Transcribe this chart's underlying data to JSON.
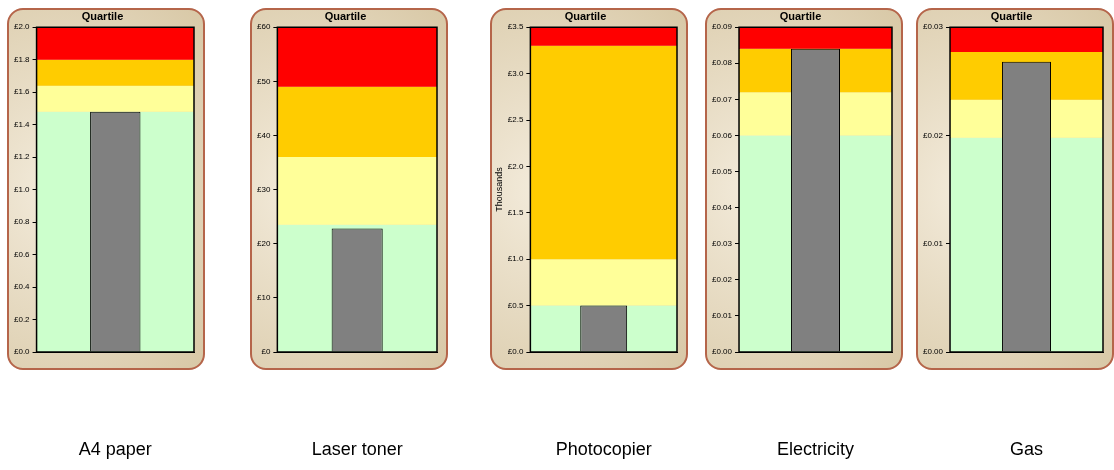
{
  "chart_data": [
    {
      "type": "bar",
      "title": "Quartile",
      "categories": [
        "A4 paper"
      ],
      "values": [
        1.48
      ],
      "color": "#808080",
      "ylim": [
        0,
        2
      ],
      "yticks": [
        {
          "value": 0,
          "label": "£0.0"
        },
        {
          "value": 0.2,
          "label": "£0.2"
        },
        {
          "value": 0.4,
          "label": "£0.4"
        },
        {
          "value": 0.6,
          "label": "£0.6"
        },
        {
          "value": 0.8,
          "label": "£0.8"
        },
        {
          "value": 1,
          "label": "£1.0"
        },
        {
          "value": 1.2,
          "label": "£1.2"
        },
        {
          "value": 1.4,
          "label": "£1.4"
        },
        {
          "value": 1.6,
          "label": "£1.6"
        },
        {
          "value": 1.8,
          "label": "£1.8"
        },
        {
          "value": 2,
          "label": "£2.0"
        }
      ],
      "bands": [
        {
          "axis": "y",
          "from": 0,
          "to": 1.48,
          "color": "#ccffcc"
        },
        {
          "axis": "y",
          "from": 1.48,
          "to": 1.64,
          "color": "#ffff99"
        },
        {
          "axis": "y",
          "from": 1.64,
          "to": 1.8,
          "color": "#ffcc00"
        },
        {
          "axis": "y",
          "from": 1.8,
          "to": 2,
          "color": "#ff0000"
        }
      ],
      "legend": false,
      "grid": false
    },
    {
      "type": "bar",
      "title": "Quartile",
      "categories": [
        "Laser toner"
      ],
      "values": [
        22.8
      ],
      "color": "#808080",
      "ylim": [
        0,
        60
      ],
      "yticks": [
        {
          "value": 0,
          "label": "£0"
        },
        {
          "value": 10,
          "label": "£10"
        },
        {
          "value": 20,
          "label": "£20"
        },
        {
          "value": 30,
          "label": "£30"
        },
        {
          "value": 40,
          "label": "£40"
        },
        {
          "value": 50,
          "label": "£50"
        },
        {
          "value": 60,
          "label": "£60"
        }
      ],
      "bands": [
        {
          "axis": "y",
          "from": 0,
          "to": 23.5,
          "color": "#ccffcc"
        },
        {
          "axis": "y",
          "from": 23.5,
          "to": 36,
          "color": "#ffff99"
        },
        {
          "axis": "y",
          "from": 36,
          "to": 49,
          "color": "#ffcc00"
        },
        {
          "axis": "y",
          "from": 49,
          "to": 60,
          "color": "#ff0000"
        }
      ],
      "legend": false,
      "grid": false
    },
    {
      "type": "bar",
      "title": "Quartile",
      "ylabel": "Thousands",
      "categories": [
        "Photocopier"
      ],
      "values": [
        0.5
      ],
      "color": "#808080",
      "ylim": [
        0,
        3.5
      ],
      "yticks": [
        {
          "value": 0,
          "label": "£0.0"
        },
        {
          "value": 0.5,
          "label": "£0.5"
        },
        {
          "value": 1,
          "label": "£1.0"
        },
        {
          "value": 1.5,
          "label": "£1.5"
        },
        {
          "value": 2,
          "label": "£2.0"
        },
        {
          "value": 2.5,
          "label": "£2.5"
        },
        {
          "value": 3,
          "label": "£3.0"
        },
        {
          "value": 3.5,
          "label": "£3.5"
        }
      ],
      "bands": [
        {
          "axis": "y",
          "from": 0,
          "to": 0.5,
          "color": "#ccffcc"
        },
        {
          "axis": "y",
          "from": 0.5,
          "to": 1,
          "color": "#ffff99"
        },
        {
          "axis": "y",
          "from": 1,
          "to": 3.3,
          "color": "#ffcc00"
        },
        {
          "axis": "y",
          "from": 3.3,
          "to": 3.5,
          "color": "#ff0000"
        }
      ],
      "legend": false,
      "grid": false
    },
    {
      "type": "bar",
      "title": "Quartile",
      "categories": [
        "Electricity"
      ],
      "values": [
        0.084
      ],
      "color": "#808080",
      "ylim": [
        0,
        0.09
      ],
      "yticks": [
        {
          "value": 0,
          "label": "£0.00"
        },
        {
          "value": 0.01,
          "label": "£0.01"
        },
        {
          "value": 0.02,
          "label": "£0.02"
        },
        {
          "value": 0.03,
          "label": "£0.03"
        },
        {
          "value": 0.04,
          "label": "£0.04"
        },
        {
          "value": 0.05,
          "label": "£0.05"
        },
        {
          "value": 0.06,
          "label": "£0.06"
        },
        {
          "value": 0.07,
          "label": "£0.07"
        },
        {
          "value": 0.08,
          "label": "£0.08"
        },
        {
          "value": 0.09,
          "label": "£0.09"
        }
      ],
      "bands": [
        {
          "axis": "y",
          "from": 0,
          "to": 0.06,
          "color": "#ccffcc"
        },
        {
          "axis": "y",
          "from": 0.06,
          "to": 0.072,
          "color": "#ffff99"
        },
        {
          "axis": "y",
          "from": 0.072,
          "to": 0.084,
          "color": "#ffcc00"
        },
        {
          "axis": "y",
          "from": 0.084,
          "to": 0.09,
          "color": "#ff0000"
        }
      ],
      "legend": false,
      "grid": false
    },
    {
      "type": "bar",
      "title": "Quartile",
      "categories": [
        "Gas"
      ],
      "values": [
        0.0268
      ],
      "color": "#808080",
      "ylim": [
        0,
        0.03
      ],
      "yticks": [
        {
          "value": 0,
          "label": "£0.00"
        },
        {
          "value": 0.01,
          "label": "£0.01"
        },
        {
          "value": 0.02,
          "label": "£0.02"
        },
        {
          "value": 0.03,
          "label": "£0.03"
        }
      ],
      "bands": [
        {
          "axis": "y",
          "from": 0,
          "to": 0.0198,
          "color": "#ccffcc"
        },
        {
          "axis": "y",
          "from": 0.0198,
          "to": 0.0233,
          "color": "#ffff99"
        },
        {
          "axis": "y",
          "from": 0.0233,
          "to": 0.0277,
          "color": "#ffcc00"
        },
        {
          "axis": "y",
          "from": 0.0277,
          "to": 0.03,
          "color": "#ff0000"
        }
      ],
      "legend": false,
      "grid": false
    }
  ]
}
